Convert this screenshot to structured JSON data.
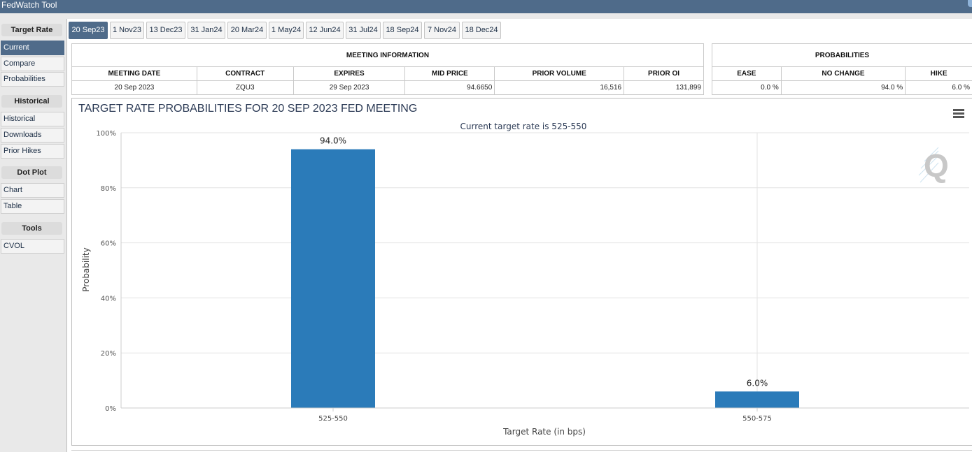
{
  "app": {
    "title": "FedWatch Tool"
  },
  "sidebar": {
    "sections": [
      {
        "header": "Target Rate",
        "items": [
          {
            "label": "Current",
            "active": true
          },
          {
            "label": "Compare"
          },
          {
            "label": "Probabilities"
          }
        ]
      },
      {
        "header": "Historical",
        "items": [
          {
            "label": "Historical"
          },
          {
            "label": "Downloads"
          },
          {
            "label": "Prior Hikes"
          }
        ]
      },
      {
        "header": "Dot Plot",
        "items": [
          {
            "label": "Chart"
          },
          {
            "label": "Table"
          }
        ]
      },
      {
        "header": "Tools",
        "items": [
          {
            "label": "CVOL"
          }
        ]
      }
    ]
  },
  "tabs": [
    {
      "label": "20 Sep23",
      "active": true
    },
    {
      "label": "1 Nov23"
    },
    {
      "label": "13 Dec23"
    },
    {
      "label": "31 Jan24"
    },
    {
      "label": "20 Mar24"
    },
    {
      "label": "1 May24"
    },
    {
      "label": "12 Jun24"
    },
    {
      "label": "31 Jul24"
    },
    {
      "label": "18 Sep24"
    },
    {
      "label": "7 Nov24"
    },
    {
      "label": "18 Dec24"
    }
  ],
  "meeting_info": {
    "caption": "MEETING INFORMATION",
    "headers": [
      "MEETING DATE",
      "CONTRACT",
      "EXPIRES",
      "MID PRICE",
      "PRIOR VOLUME",
      "PRIOR OI"
    ],
    "row": [
      "20 Sep 2023",
      "ZQU3",
      "29 Sep 2023",
      "94.6650",
      "16,516",
      "131,899"
    ]
  },
  "probabilities_table": {
    "caption": "PROBABILITIES",
    "headers": [
      "EASE",
      "NO CHANGE",
      "HIKE"
    ],
    "row": [
      "0.0 %",
      "94.0 %",
      "6.0 %"
    ]
  },
  "chart": {
    "title": "TARGET RATE PROBABILITIES FOR 20 SEP 2023 FED MEETING",
    "menu_icon": "hamburger-menu-icon",
    "watermark_icon": "quikstrike-q-logo",
    "accent_color": "#2b7bb9"
  },
  "chart_data": {
    "type": "bar",
    "title": "TARGET RATE PROBABILITIES FOR 20 SEP 2023 FED MEETING",
    "subtitle": "Current target rate is 525-550",
    "categories": [
      "525-550",
      "550-575"
    ],
    "values": [
      94.0,
      6.0
    ],
    "data_labels": [
      "94.0%",
      "6.0%"
    ],
    "xlabel": "Target Rate (in bps)",
    "ylabel": "Probability",
    "ylim": [
      0,
      100
    ],
    "yticks": [
      "0%",
      "20%",
      "40%",
      "60%",
      "80%",
      "100%"
    ],
    "grid": true,
    "bar_color": "#2b7bb9"
  }
}
